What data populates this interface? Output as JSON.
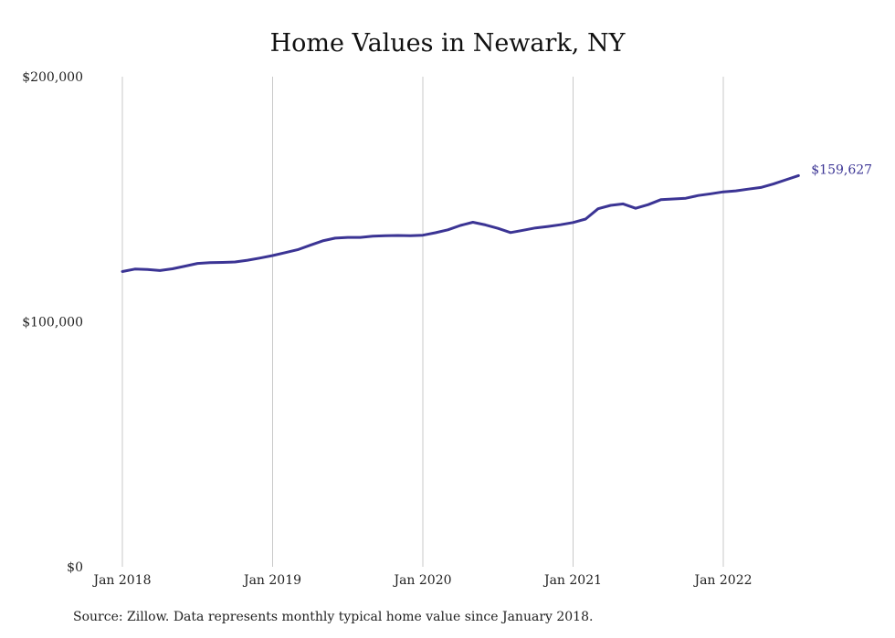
{
  "chart_data": {
    "type": "line",
    "title": "Home Values in Newark, NY",
    "xlabel": "",
    "ylabel": "",
    "ylim": [
      0,
      200000
    ],
    "yticks": [
      {
        "value": 0,
        "label": "$0"
      },
      {
        "value": 100000,
        "label": "$100,000"
      },
      {
        "value": 200000,
        "label": "$200,000"
      }
    ],
    "xticks": [
      {
        "value": "2018-01",
        "label": "Jan 2018"
      },
      {
        "value": "2019-01",
        "label": "Jan 2019"
      },
      {
        "value": "2020-01",
        "label": "Jan 2020"
      },
      {
        "value": "2021-01",
        "label": "Jan 2021"
      },
      {
        "value": "2022-01",
        "label": "Jan 2022"
      }
    ],
    "grid": {
      "vertical": true,
      "horizontal": false
    },
    "line_color": "#3b3494",
    "end_label": "$159,627",
    "series": [
      {
        "x": [
          "2018-01",
          "2018-02",
          "2018-03",
          "2018-04",
          "2018-05",
          "2018-06",
          "2018-07",
          "2018-08",
          "2018-09",
          "2018-10",
          "2018-11",
          "2018-12",
          "2019-01",
          "2019-02",
          "2019-03",
          "2019-04",
          "2019-05",
          "2019-06",
          "2019-07",
          "2019-08",
          "2019-09",
          "2019-10",
          "2019-11",
          "2019-12",
          "2020-01",
          "2020-02",
          "2020-03",
          "2020-04",
          "2020-05",
          "2020-06",
          "2020-07",
          "2020-08",
          "2020-09",
          "2020-10",
          "2020-11",
          "2020-12",
          "2021-01",
          "2021-02",
          "2021-03",
          "2021-04",
          "2021-05",
          "2021-06",
          "2021-07",
          "2021-08",
          "2021-09",
          "2021-10",
          "2021-11",
          "2021-12",
          "2022-01",
          "2022-02",
          "2022-03",
          "2022-04",
          "2022-05",
          "2022-06",
          "2022-07"
        ],
        "values": [
          120500,
          121500,
          121300,
          120900,
          121600,
          122700,
          123800,
          124100,
          124200,
          124400,
          125100,
          126000,
          127000,
          128200,
          129400,
          131200,
          133000,
          134100,
          134400,
          134400,
          134900,
          135100,
          135200,
          135100,
          135300,
          136300,
          137500,
          139300,
          140600,
          139500,
          138100,
          136400,
          137300,
          138300,
          138900,
          139600,
          140500,
          141900,
          146100,
          147500,
          148100,
          146300,
          147800,
          149800,
          150100,
          150400,
          151500,
          152200,
          153000,
          153400,
          154100,
          154800,
          156200,
          157900,
          159627
        ]
      }
    ]
  },
  "footer": {
    "source": "Source: Zillow. Data represents monthly typical home value since January 2018."
  }
}
